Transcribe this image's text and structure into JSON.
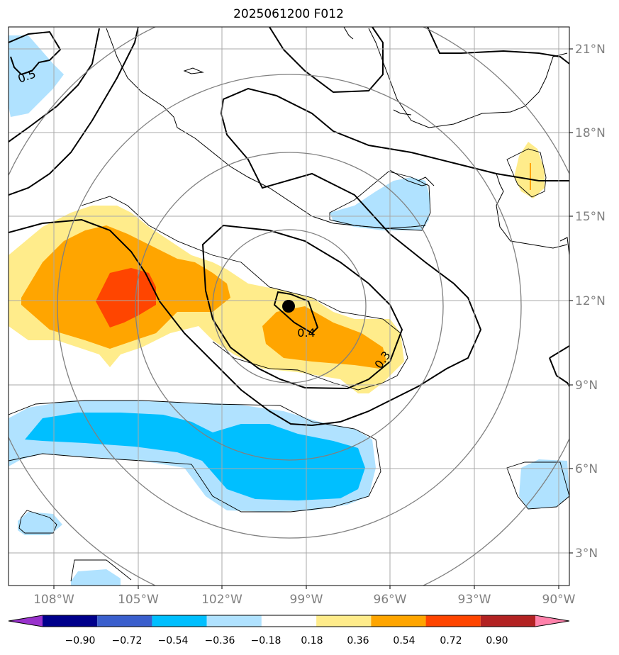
{
  "title": "2025061200 F012",
  "map": {
    "lon_range": [
      -110,
      -89.5
    ],
    "lat_range": [
      2,
      22
    ],
    "lon_ticks": [
      "108°W",
      "105°W",
      "102°W",
      "99°W",
      "96°W",
      "93°W",
      "90°W"
    ],
    "lat_ticks": [
      "3°N",
      "6°N",
      "9°N",
      "12°N",
      "15°N",
      "18°N",
      "21°N"
    ],
    "grid": true,
    "center_marker": {
      "lon": -99.6,
      "lat": 11.8
    }
  },
  "contour_labels": [
    "0.5",
    "0.4",
    "0.3"
  ],
  "colorbar": {
    "ticks": [
      "−0.90",
      "−0.72",
      "−0.54",
      "−0.36",
      "−0.18",
      "0.18",
      "0.36",
      "0.54",
      "0.72",
      "0.90"
    ],
    "colors": [
      "#9932cc",
      "#00008b",
      "#3a5fcd",
      "#00bfff",
      "#b0e2ff",
      "#ffffff",
      "#ffec8b",
      "#ffa500",
      "#ff4500",
      "#b22222",
      "#ff82ab"
    ]
  }
}
